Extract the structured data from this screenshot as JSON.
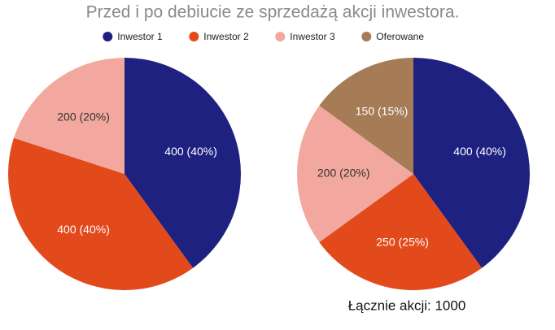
{
  "title": "Przed i po debiucie ze sprzedażą akcji inwestora.",
  "annotation": "Łącznie akcji: 1000",
  "chart_data": [
    {
      "type": "pie",
      "categories": [
        "Inwestor 1",
        "Inwestor 2",
        "Inwestor 3"
      ],
      "values": [
        400,
        400,
        200
      ],
      "value_labels": [
        "400 (40%)",
        "400 (40%)",
        "200 (20%)"
      ],
      "colors": [
        "#1f2180",
        "#e2491b",
        "#f2a89e"
      ]
    },
    {
      "type": "pie",
      "categories": [
        "Inwestor 1",
        "Inwestor 2",
        "Inwestor 3",
        "Oferowane"
      ],
      "values": [
        400,
        250,
        200,
        150
      ],
      "value_labels": [
        "400 (40%)",
        "250 (25%)",
        "200 (20%)",
        "150 (15%)"
      ],
      "colors": [
        "#1f2180",
        "#e2491b",
        "#f2a89e",
        "#a67c57"
      ]
    }
  ]
}
